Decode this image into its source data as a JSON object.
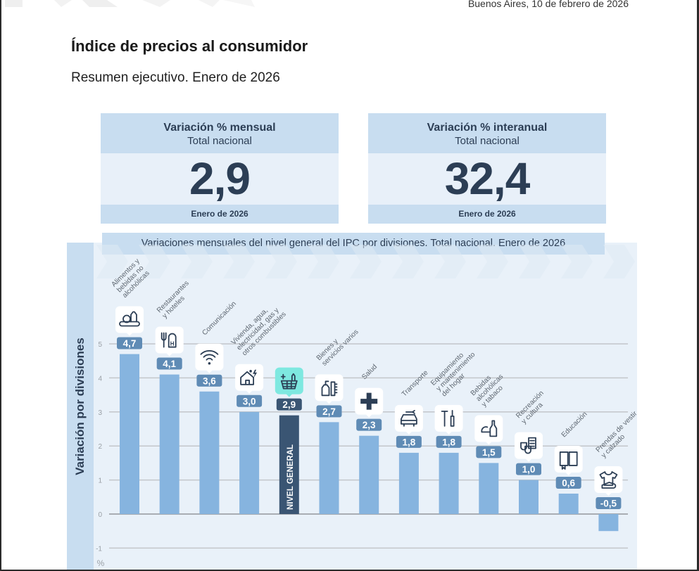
{
  "header": {
    "dateline": "Buenos Aires, 10 de febrero de 2026",
    "title": "Índice de precios al consumidor",
    "subtitle": "Resumen ejecutivo. Enero de 2026"
  },
  "cards": [
    {
      "title": "Variación % mensual",
      "subtitle": "Total nacional",
      "value": "2,9",
      "footer": "Enero de 2026"
    },
    {
      "title": "Variación % interanual",
      "subtitle": "Total nacional",
      "value": "32,4",
      "footer": "Enero de 2026"
    }
  ],
  "colors": {
    "bar": "#86b4df",
    "bar_general": "#3a5573",
    "label_box": "#5f8bb5",
    "label_box_general": "#3a5573",
    "icon_box_general": "#7ee8e0",
    "panel": "#e9f1f9",
    "header_band": "#c8ddf0",
    "text_dark": "#2c3e55"
  },
  "chart_data": {
    "type": "bar",
    "title": "Variaciones mensuales del nivel general del IPC por divisiones. Total nacional. Enero de 2026",
    "ylabel": "Variación por divisiones",
    "yunit": "%",
    "ylim": [
      -1,
      5
    ],
    "yticks": [
      "5",
      "4",
      "3",
      "2",
      "1",
      "0",
      "-1"
    ],
    "ytick_values": [
      5,
      4,
      3,
      2,
      1,
      0,
      -1
    ],
    "grid": true,
    "categories": [
      {
        "lines": [
          "Alimentos y",
          "bebidas no",
          "alcohólicas"
        ],
        "icon": "food-icon"
      },
      {
        "lines": [
          "Restaurantes",
          "y hoteles"
        ],
        "icon": "restaurant-hotel-icon"
      },
      {
        "lines": [
          "Comunicación"
        ],
        "icon": "wifi-icon"
      },
      {
        "lines": [
          "Vivienda, agua,",
          "electricidad, gas y",
          "otros combustibles"
        ],
        "icon": "house-utilities-icon"
      },
      {
        "lines": [],
        "icon": "basket-icon",
        "bar_text": "NIVEL GENERAL",
        "general": true
      },
      {
        "lines": [
          "Bienes y",
          "servicios varios"
        ],
        "icon": "toiletries-icon"
      },
      {
        "lines": [
          "Salud"
        ],
        "icon": "health-cross-icon"
      },
      {
        "lines": [
          "Transporte"
        ],
        "icon": "car-icon"
      },
      {
        "lines": [
          "Equipamiento",
          "y mantenimiento",
          "del hogar"
        ],
        "icon": "tools-icon"
      },
      {
        "lines": [
          "Bebidas",
          "alcohólicas",
          "y tabaco"
        ],
        "icon": "bottle-icon"
      },
      {
        "lines": [
          "Recreación",
          "y cultura"
        ],
        "icon": "theater-masks-icon"
      },
      {
        "lines": [
          "Educación"
        ],
        "icon": "book-icon"
      },
      {
        "lines": [
          "Prendas de vestir",
          "y calzado"
        ],
        "icon": "clothing-icon"
      }
    ],
    "values": [
      4.7,
      4.1,
      3.6,
      3.0,
      2.9,
      2.7,
      2.3,
      1.8,
      1.8,
      1.5,
      1.0,
      0.6,
      -0.5
    ],
    "value_labels": [
      "4,7",
      "4,1",
      "3,6",
      "3,0",
      "2,9",
      "2,7",
      "2,3",
      "1,8",
      "1,8",
      "1,5",
      "1,0",
      "0,6",
      "-0,5"
    ]
  }
}
